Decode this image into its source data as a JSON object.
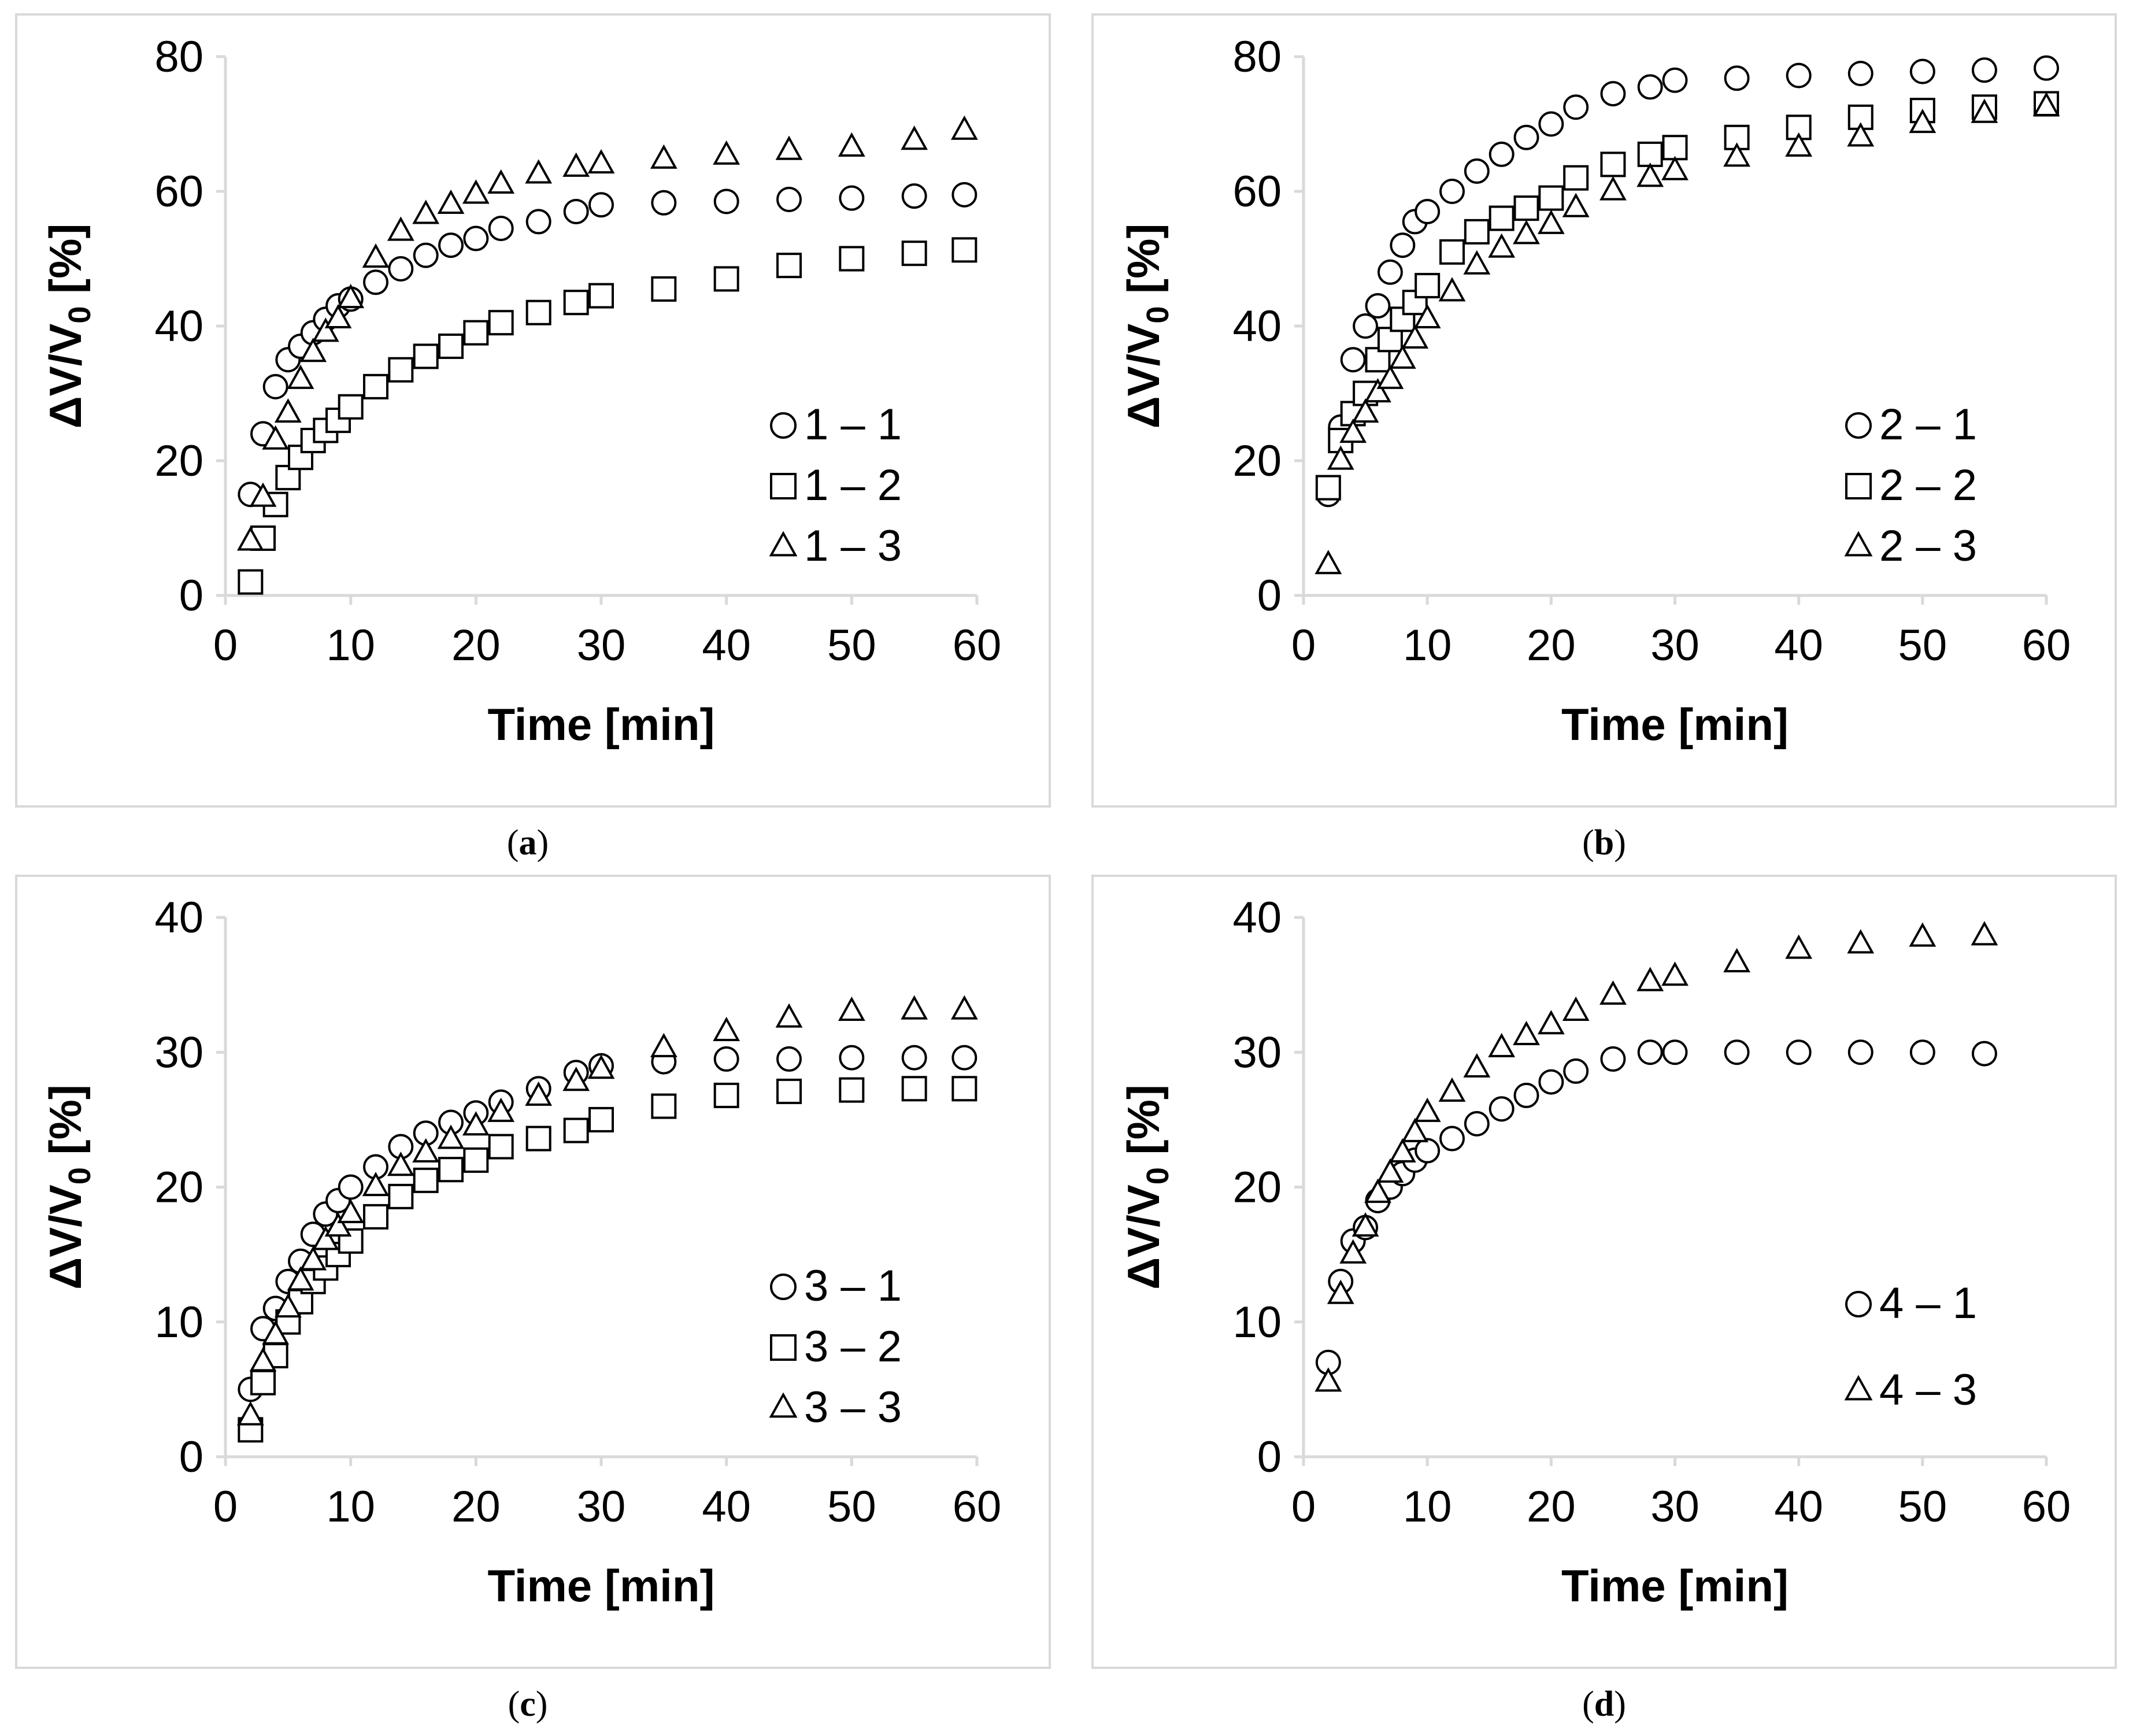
{
  "chart_data": [
    {
      "id": "a",
      "caption": "a",
      "type": "scatter",
      "xlabel": "Time [min]",
      "ylabel_main": "ΔV/V",
      "ylabel_sub": "0",
      "ylabel_tail": " [%]",
      "xlim": [
        0,
        60
      ],
      "ylim": [
        0,
        80
      ],
      "xticks": [
        0,
        10,
        20,
        30,
        40,
        50,
        60
      ],
      "yticks": [
        0,
        20,
        40,
        60,
        80
      ],
      "series": [
        {
          "name": "1 – 1",
          "marker": "circle",
          "x": [
            2,
            3,
            4,
            5,
            6,
            7,
            8,
            9,
            10,
            12,
            14,
            16,
            18,
            20,
            22,
            25,
            28,
            30,
            35,
            40,
            45,
            50,
            55,
            59
          ],
          "y": [
            15,
            24,
            31,
            35,
            37,
            39,
            41,
            43,
            44,
            46.5,
            48.5,
            50.5,
            52,
            53,
            54.5,
            55.5,
            57,
            58,
            58.3,
            58.5,
            58.8,
            59,
            59.3,
            59.5
          ]
        },
        {
          "name": "1 – 2",
          "marker": "square",
          "x": [
            2,
            3,
            4,
            5,
            6,
            7,
            8,
            9,
            10,
            12,
            14,
            16,
            18,
            20,
            22,
            25,
            28,
            30,
            35,
            40,
            45,
            50,
            55,
            59
          ],
          "y": [
            2,
            8.5,
            13.5,
            17.5,
            20.5,
            23,
            24.5,
            26,
            28,
            31,
            33.5,
            35.5,
            37,
            39,
            40.5,
            42,
            43.5,
            44.5,
            45.5,
            47,
            49,
            50,
            50.8,
            51.3
          ]
        },
        {
          "name": "1 – 3",
          "marker": "triangle",
          "x": [
            2,
            3,
            4,
            5,
            6,
            7,
            8,
            9,
            10,
            12,
            14,
            16,
            18,
            20,
            22,
            25,
            28,
            30,
            35,
            40,
            45,
            50,
            55,
            59
          ],
          "y": [
            8,
            14.5,
            23,
            27,
            32,
            36,
            39,
            41,
            44,
            50,
            54,
            56.5,
            58,
            59.5,
            61,
            62.5,
            63.5,
            64,
            64.7,
            65.3,
            66,
            66.5,
            67.5,
            69
          ]
        }
      ]
    },
    {
      "id": "b",
      "caption": "b",
      "type": "scatter",
      "xlabel": "Time [min]",
      "ylabel_main": "ΔV/V",
      "ylabel_sub": "0",
      "ylabel_tail": " [%]",
      "xlim": [
        0,
        60
      ],
      "ylim": [
        0,
        80
      ],
      "xticks": [
        0,
        10,
        20,
        30,
        40,
        50,
        60
      ],
      "yticks": [
        0,
        20,
        40,
        60,
        80
      ],
      "series": [
        {
          "name": "2 – 1",
          "marker": "circle",
          "x": [
            2,
            3,
            4,
            5,
            6,
            7,
            8,
            9,
            10,
            12,
            14,
            16,
            18,
            20,
            22,
            25,
            28,
            30,
            35,
            40,
            45,
            50,
            55,
            60
          ],
          "y": [
            15,
            25,
            35,
            40,
            43,
            48,
            52,
            55.5,
            57,
            60,
            63,
            65.5,
            68,
            70,
            72.5,
            74.5,
            75.5,
            76.5,
            76.8,
            77.2,
            77.5,
            77.8,
            78,
            78.3
          ]
        },
        {
          "name": "2 – 2",
          "marker": "square",
          "x": [
            2,
            3,
            4,
            5,
            6,
            7,
            8,
            9,
            10,
            12,
            14,
            16,
            18,
            20,
            22,
            25,
            28,
            30,
            35,
            40,
            45,
            50,
            55,
            60
          ],
          "y": [
            16,
            23,
            27,
            30,
            35,
            38,
            41,
            43.5,
            46,
            51,
            54,
            56,
            57.5,
            59,
            62,
            64,
            65.5,
            66.5,
            68,
            69.5,
            71,
            72,
            72.5,
            73
          ]
        },
        {
          "name": "2 – 3",
          "marker": "triangle",
          "x": [
            2,
            3,
            4,
            5,
            6,
            7,
            8,
            9,
            10,
            12,
            14,
            16,
            18,
            20,
            22,
            25,
            28,
            30,
            35,
            40,
            45,
            50,
            55,
            60
          ],
          "y": [
            4.5,
            20,
            24,
            27,
            30,
            32,
            35,
            38,
            41,
            45,
            49,
            51.5,
            53.5,
            55,
            57.5,
            60,
            62,
            63,
            65,
            66.5,
            68,
            70,
            71.5,
            72.5
          ]
        }
      ]
    },
    {
      "id": "c",
      "caption": "c",
      "type": "scatter",
      "xlabel": "Time [min]",
      "ylabel_main": "ΔV/V",
      "ylabel_sub": "0",
      "ylabel_tail": " [%]",
      "xlim": [
        0,
        60
      ],
      "ylim": [
        0,
        40
      ],
      "xticks": [
        0,
        10,
        20,
        30,
        40,
        50,
        60
      ],
      "yticks": [
        0,
        10,
        20,
        30,
        40
      ],
      "series": [
        {
          "name": "3 – 1",
          "marker": "circle",
          "x": [
            2,
            3,
            4,
            5,
            6,
            7,
            8,
            9,
            10,
            12,
            14,
            16,
            18,
            20,
            22,
            25,
            28,
            30,
            35,
            40,
            45,
            50,
            55,
            59
          ],
          "y": [
            5,
            9.5,
            11,
            13,
            14.5,
            16.5,
            18,
            19,
            20,
            21.5,
            23,
            24,
            24.8,
            25.5,
            26.3,
            27.3,
            28.5,
            29,
            29.3,
            29.5,
            29.5,
            29.6,
            29.6,
            29.6
          ]
        },
        {
          "name": "3 – 2",
          "marker": "square",
          "x": [
            2,
            3,
            4,
            5,
            6,
            7,
            8,
            9,
            10,
            12,
            14,
            16,
            18,
            20,
            22,
            25,
            28,
            30,
            35,
            40,
            45,
            50,
            55,
            59
          ],
          "y": [
            2,
            5.5,
            7.5,
            10,
            11.5,
            13,
            14,
            15,
            16,
            17.8,
            19.3,
            20.5,
            21.3,
            22,
            23,
            23.6,
            24.2,
            25,
            26,
            26.8,
            27.1,
            27.2,
            27.3,
            27.3
          ]
        },
        {
          "name": "3 – 3",
          "marker": "triangle",
          "x": [
            2,
            3,
            4,
            5,
            6,
            7,
            8,
            9,
            10,
            12,
            14,
            16,
            18,
            20,
            22,
            25,
            28,
            30,
            35,
            40,
            45,
            50,
            55,
            59
          ],
          "y": [
            3,
            7,
            9,
            11,
            13,
            14.5,
            16,
            17,
            18,
            20,
            21.5,
            22.5,
            23.5,
            24.5,
            25.5,
            26.7,
            27.8,
            28.7,
            30.3,
            31.5,
            32.5,
            33,
            33.1,
            33.1
          ]
        }
      ]
    },
    {
      "id": "d",
      "caption": "d",
      "type": "scatter",
      "xlabel": "Time [min]",
      "ylabel_main": "ΔV/V",
      "ylabel_sub": "0",
      "ylabel_tail": " [%]",
      "xlim": [
        0,
        60
      ],
      "ylim": [
        0,
        40
      ],
      "xticks": [
        0,
        10,
        20,
        30,
        40,
        50,
        60
      ],
      "yticks": [
        0,
        10,
        20,
        30,
        40
      ],
      "series": [
        {
          "name": "4 – 1",
          "marker": "circle",
          "x": [
            2,
            3,
            4,
            5,
            6,
            7,
            8,
            9,
            10,
            12,
            14,
            16,
            18,
            20,
            22,
            25,
            28,
            30,
            35,
            40,
            45,
            50,
            55
          ],
          "y": [
            7,
            13,
            16,
            17,
            19,
            20,
            21,
            22,
            22.7,
            23.6,
            24.7,
            25.8,
            26.8,
            27.8,
            28.6,
            29.5,
            30,
            30,
            30,
            30,
            30,
            30,
            29.9
          ]
        },
        {
          "name": "4 – 3",
          "marker": "triangle",
          "x": [
            2,
            3,
            4,
            5,
            6,
            7,
            8,
            9,
            10,
            12,
            14,
            16,
            18,
            20,
            22,
            25,
            28,
            30,
            35,
            40,
            45,
            50,
            55
          ],
          "y": [
            5.5,
            12,
            15,
            17,
            19.5,
            21,
            22.5,
            24,
            25.5,
            27,
            28.8,
            30.3,
            31.2,
            32,
            33,
            34.2,
            35.2,
            35.6,
            36.6,
            37.6,
            38,
            38.5,
            38.6
          ]
        }
      ]
    }
  ]
}
